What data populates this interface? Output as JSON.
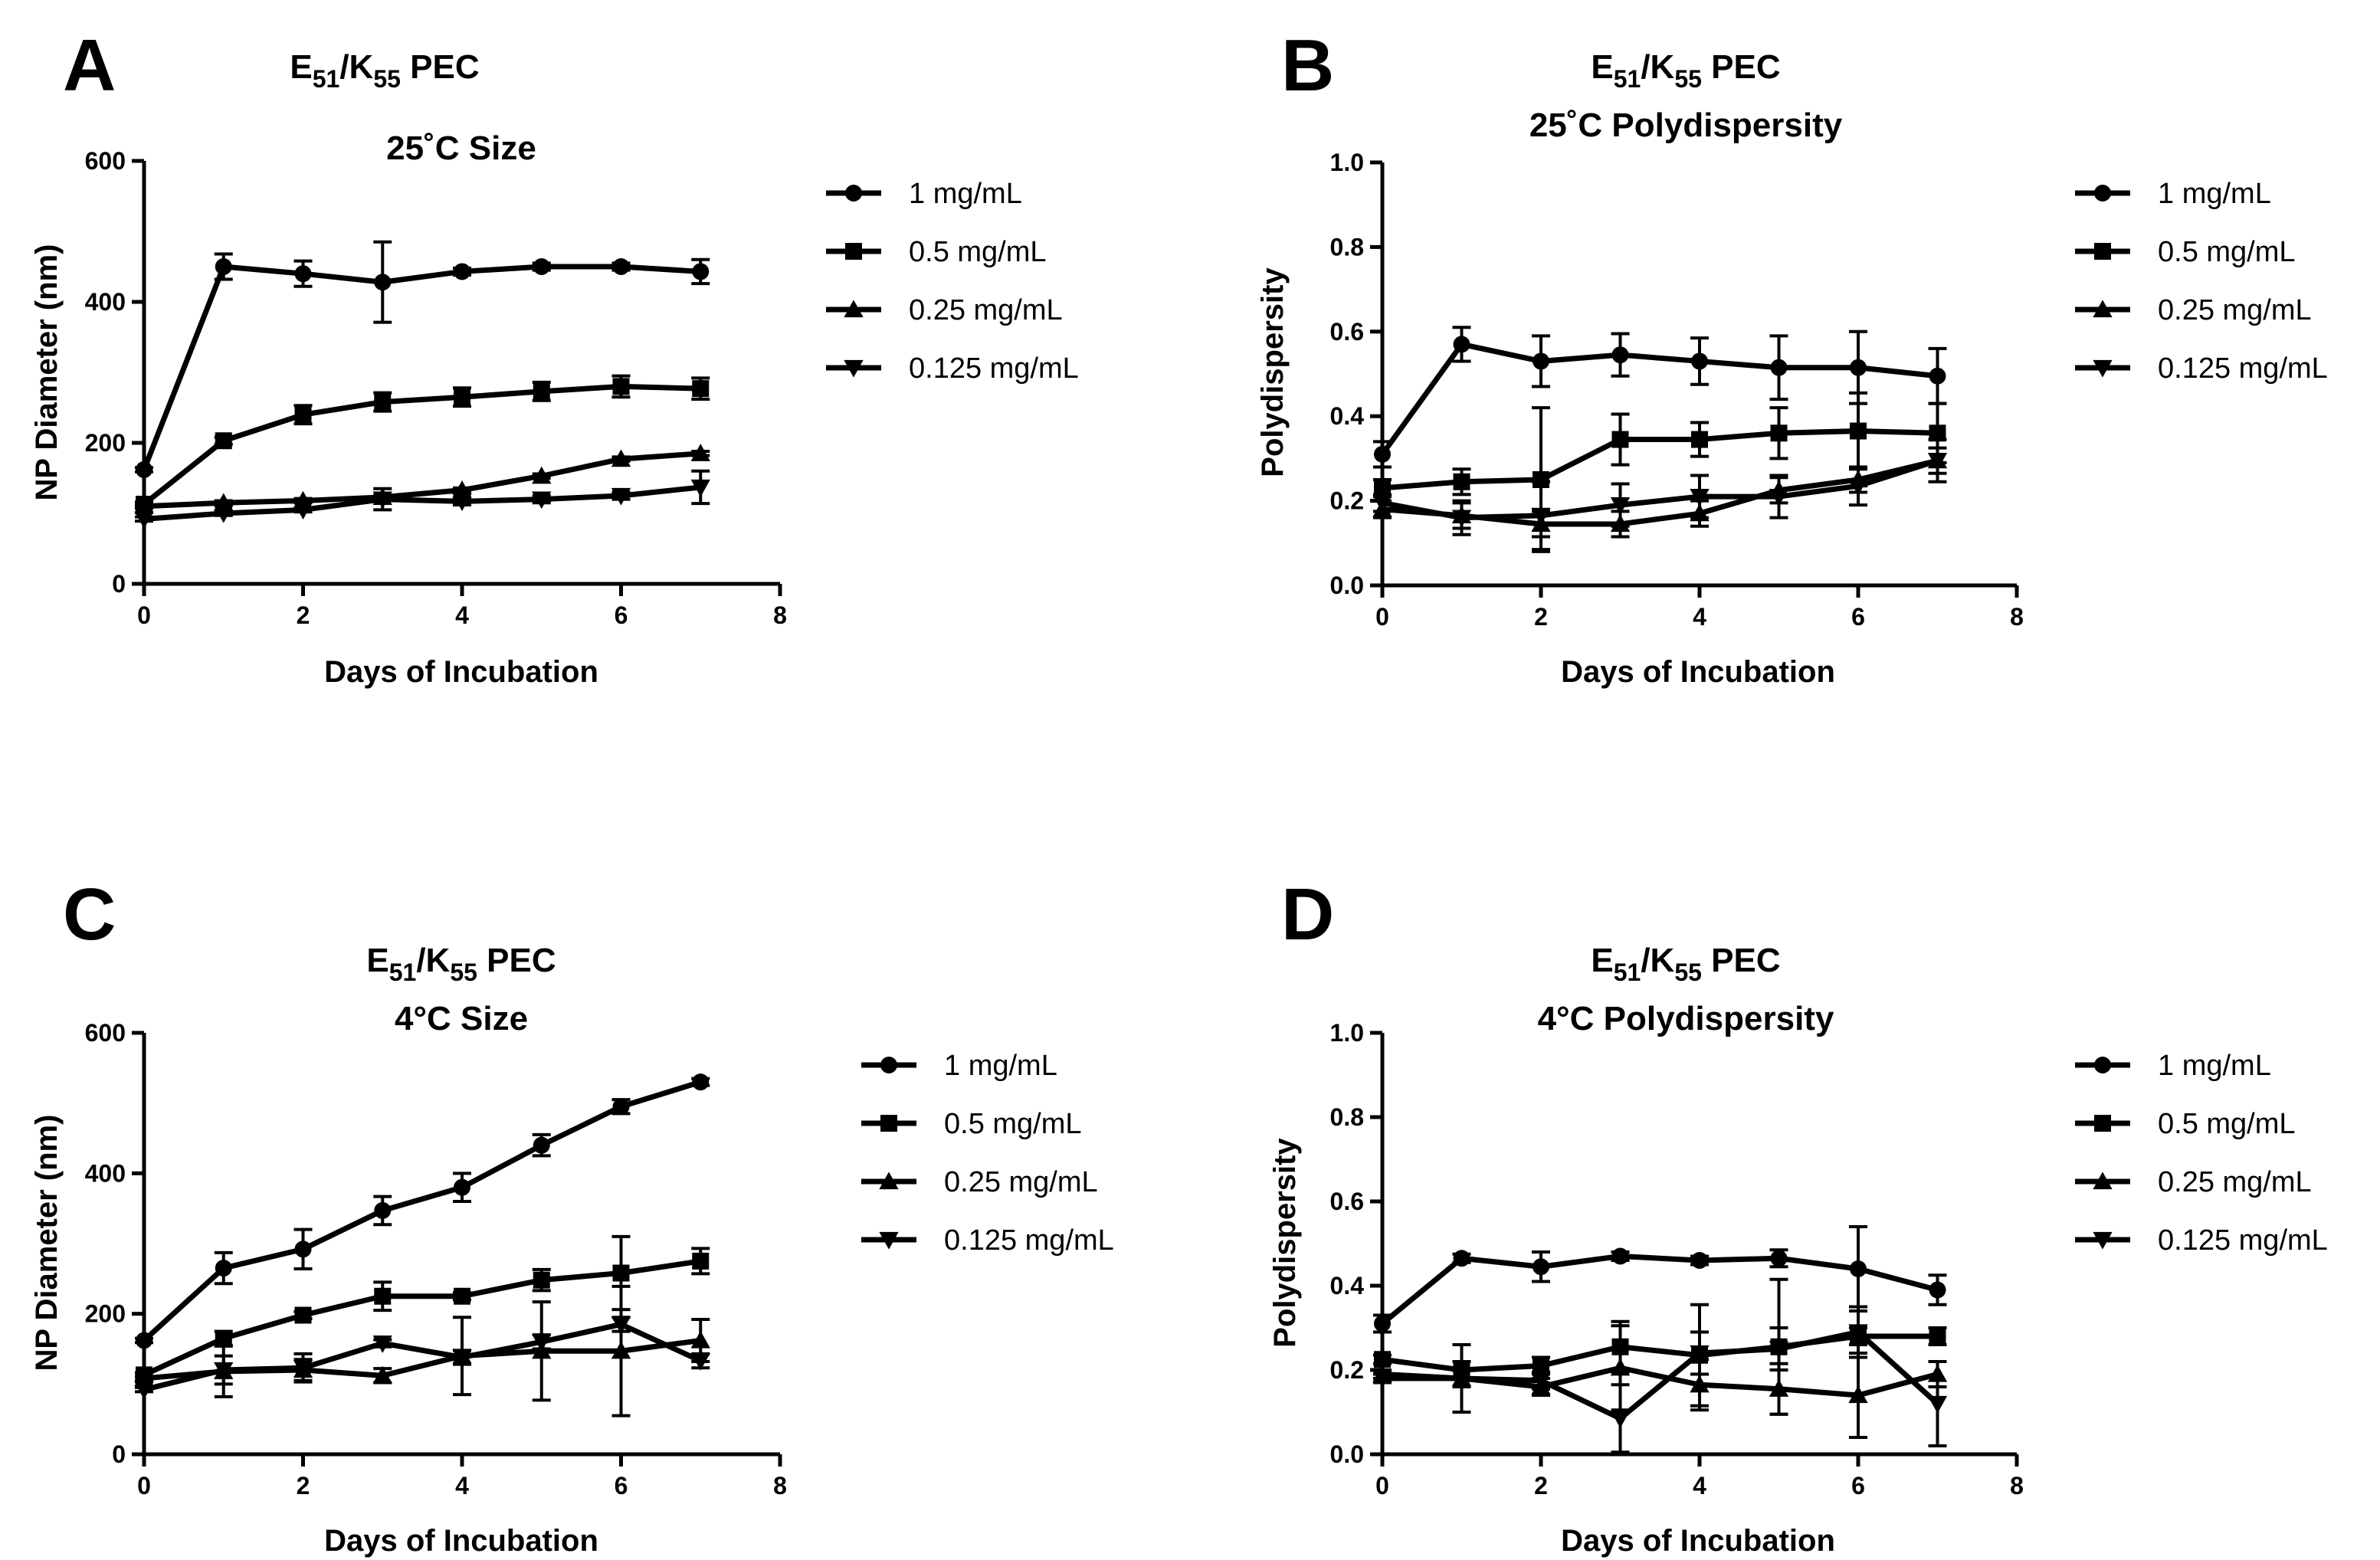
{
  "figure_panels": [
    {
      "letter": "A",
      "title_main": "E",
      "sub1": "51",
      "slash": "/K",
      "sub2": "55",
      "title_tail": " PEC",
      "title2": "25˚C Size"
    },
    {
      "letter": "B",
      "title_main": "E",
      "sub1": "51",
      "slash": "/K",
      "sub2": "55",
      "title_tail": " PEC",
      "title2": "25˚C Polydispersity"
    },
    {
      "letter": "C",
      "title_main": "E",
      "sub1": "51",
      "slash": "/K",
      "sub2": "55",
      "title_tail": " PEC",
      "title2": "4°C Size"
    },
    {
      "letter": "D",
      "title_main": "E",
      "sub1": "51",
      "slash": "/K",
      "sub2": "55",
      "title_tail": " PEC",
      "title2": "4°C Polydispersity"
    }
  ],
  "chart_data": [
    {
      "type": "line",
      "panel": "A",
      "title": "E51/K55 PEC 25˚C Size",
      "xlabel": "Days of Incubation",
      "ylabel": "NP Diameter (nm)",
      "xlim": [
        0,
        8
      ],
      "ylim": [
        0,
        600
      ],
      "xticks": [
        0,
        2,
        4,
        6,
        8
      ],
      "yticks": [
        0,
        200,
        400,
        600
      ],
      "x": [
        0,
        1,
        2,
        3,
        4,
        5,
        6,
        7
      ],
      "series": [
        {
          "name": "1 mg/mL",
          "marker": "circle",
          "values": [
            162,
            450,
            440,
            428,
            443,
            450,
            450,
            443
          ],
          "errors": [
            3,
            18,
            18,
            57,
            5,
            5,
            5,
            17
          ]
        },
        {
          "name": "0.5 mg/mL",
          "marker": "square",
          "values": [
            113,
            203,
            240,
            258,
            265,
            273,
            280,
            277
          ],
          "errors": [
            3,
            5,
            13,
            13,
            13,
            13,
            15,
            15
          ]
        },
        {
          "name": "0.25 mg/mL",
          "marker": "triangle-up",
          "values": [
            110,
            115,
            118,
            123,
            133,
            153,
            177,
            185
          ],
          "errors": [
            3,
            3,
            3,
            3,
            3,
            3,
            3,
            3
          ]
        },
        {
          "name": "0.125 mg/mL",
          "marker": "triangle-down",
          "values": [
            92,
            100,
            105,
            120,
            117,
            120,
            125,
            137
          ],
          "errors": [
            3,
            3,
            3,
            15,
            5,
            5,
            5,
            23
          ]
        }
      ]
    },
    {
      "type": "line",
      "panel": "B",
      "title": "E51/K55 PEC 25˚C Polydispersity",
      "xlabel": "Days of Incubation",
      "ylabel": "Polydispersity",
      "xlim": [
        0,
        8
      ],
      "ylim": [
        0,
        1.0
      ],
      "xticks": [
        0,
        2,
        4,
        6,
        8
      ],
      "yticks": [
        0.0,
        0.2,
        0.4,
        0.6,
        0.8,
        1.0
      ],
      "x": [
        0,
        1,
        2,
        3,
        4,
        5,
        6,
        7
      ],
      "series": [
        {
          "name": "1 mg/mL",
          "marker": "circle",
          "values": [
            0.31,
            0.57,
            0.53,
            0.545,
            0.53,
            0.515,
            0.515,
            0.495
          ],
          "errors": [
            0.03,
            0.04,
            0.06,
            0.05,
            0.055,
            0.075,
            0.085,
            0.065
          ]
        },
        {
          "name": "0.5 mg/mL",
          "marker": "square",
          "values": [
            0.23,
            0.245,
            0.25,
            0.345,
            0.345,
            0.36,
            0.365,
            0.36
          ],
          "errors": [
            0.02,
            0.03,
            0.17,
            0.06,
            0.04,
            0.06,
            0.09,
            0.07
          ]
        },
        {
          "name": "0.25 mg/mL",
          "marker": "triangle-up",
          "values": [
            0.18,
            0.165,
            0.145,
            0.145,
            0.17,
            0.225,
            0.25,
            0.295
          ],
          "errors": [
            0.02,
            0.03,
            0.03,
            0.03,
            0.03,
            0.03,
            0.03,
            0.03
          ]
        },
        {
          "name": "0.125 mg/mL",
          "marker": "triangle-down",
          "values": [
            0.195,
            0.16,
            0.165,
            0.19,
            0.21,
            0.21,
            0.235,
            0.295
          ],
          "errors": [
            0.02,
            0.04,
            0.08,
            0.05,
            0.05,
            0.05,
            0.045,
            0.05
          ]
        }
      ]
    },
    {
      "type": "line",
      "panel": "C",
      "title": "E51/K55 PEC 4°C Size",
      "xlabel": "Days of Incubation",
      "ylabel": "NP Diameter (nm)",
      "xlim": [
        0,
        8
      ],
      "ylim": [
        0,
        600
      ],
      "xticks": [
        0,
        2,
        4,
        6,
        8
      ],
      "yticks": [
        0,
        200,
        400,
        600
      ],
      "x": [
        0,
        1,
        2,
        3,
        4,
        5,
        6,
        7
      ],
      "series": [
        {
          "name": "1 mg/mL",
          "marker": "circle",
          "values": [
            162,
            265,
            292,
            347,
            380,
            440,
            495,
            530
          ],
          "errors": [
            3,
            22,
            28,
            20,
            20,
            15,
            10,
            5
          ]
        },
        {
          "name": "0.5 mg/mL",
          "marker": "square",
          "values": [
            113,
            165,
            198,
            225,
            225,
            248,
            258,
            275
          ],
          "errors": [
            3,
            10,
            5,
            20,
            5,
            15,
            52,
            18
          ]
        },
        {
          "name": "0.25 mg/mL",
          "marker": "triangle-up",
          "values": [
            108,
            118,
            120,
            112,
            140,
            147,
            147,
            162
          ],
          "errors": [
            3,
            36,
            15,
            10,
            55,
            70,
            92,
            30
          ]
        },
        {
          "name": "0.125 mg/mL",
          "marker": "triangle-down",
          "values": [
            92,
            120,
            123,
            158,
            138,
            160,
            185,
            133
          ],
          "errors": [
            3,
            20,
            20,
            5,
            10,
            10,
            10,
            10
          ]
        }
      ]
    },
    {
      "type": "line",
      "panel": "D",
      "title": "E51/K55 PEC 4°C Polydispersity",
      "xlabel": "Days of Incubation",
      "ylabel": "Polydispersity",
      "xlim": [
        0,
        8
      ],
      "ylim": [
        0,
        1.0
      ],
      "xticks": [
        0,
        2,
        4,
        6,
        8
      ],
      "yticks": [
        0.0,
        0.2,
        0.4,
        0.6,
        0.8,
        1.0
      ],
      "x": [
        0,
        1,
        2,
        3,
        4,
        5,
        6,
        7
      ],
      "series": [
        {
          "name": "1 mg/mL",
          "marker": "circle",
          "values": [
            0.31,
            0.465,
            0.445,
            0.47,
            0.46,
            0.465,
            0.44,
            0.39
          ],
          "errors": [
            0.02,
            0.01,
            0.035,
            0.01,
            0.01,
            0.02,
            0.1,
            0.035
          ]
        },
        {
          "name": "0.5 mg/mL",
          "marker": "square",
          "values": [
            0.225,
            0.2,
            0.21,
            0.255,
            0.235,
            0.255,
            0.28,
            0.28
          ],
          "errors": [
            0.01,
            0.02,
            0.02,
            0.06,
            0.12,
            0.16,
            0.02,
            0.02
          ]
        },
        {
          "name": "0.25 mg/mL",
          "marker": "triangle-up",
          "values": [
            0.19,
            0.18,
            0.16,
            0.205,
            0.165,
            0.155,
            0.14,
            0.19
          ],
          "errors": [
            0.01,
            0.08,
            0.02,
            0.1,
            0.06,
            0.06,
            0.1,
            0.03
          ]
        },
        {
          "name": "0.125 mg/mL",
          "marker": "triangle-down",
          "values": [
            0.18,
            0.18,
            0.175,
            0.085,
            0.24,
            0.25,
            0.29,
            0.12
          ],
          "errors": [
            0.01,
            0.02,
            0.02,
            0.08,
            0.05,
            0.05,
            0.06,
            0.1
          ]
        }
      ]
    }
  ]
}
